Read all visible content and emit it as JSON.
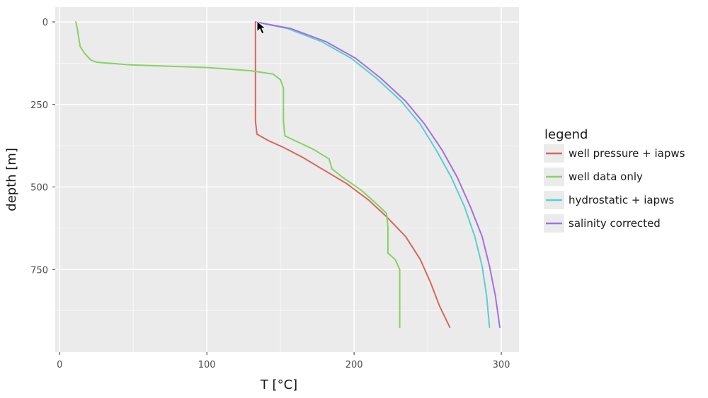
{
  "chart_data": {
    "type": "line",
    "title": "",
    "xlabel": "T [°C]",
    "ylabel": "depth [m]",
    "xlim": [
      -3,
      312
    ],
    "ylim": [
      1000,
      -45
    ],
    "y_reversed": true,
    "x_ticks": [
      0,
      100,
      200,
      300
    ],
    "y_ticks": [
      0,
      250,
      500,
      750
    ],
    "panel_background": "#ebebeb",
    "grid": true,
    "grid_color": "#ffffff",
    "legend": {
      "title": "legend",
      "position": "right"
    },
    "series": [
      {
        "name": "well pressure + iapws",
        "color": "#d9675b",
        "points": [
          [
            133,
            0
          ],
          [
            133,
            100
          ],
          [
            133,
            200
          ],
          [
            133,
            300
          ],
          [
            134,
            340
          ],
          [
            142,
            360
          ],
          [
            152,
            380
          ],
          [
            165,
            410
          ],
          [
            180,
            450
          ],
          [
            195,
            490
          ],
          [
            210,
            540
          ],
          [
            222,
            590
          ],
          [
            235,
            650
          ],
          [
            245,
            720
          ],
          [
            252,
            790
          ],
          [
            258,
            860
          ],
          [
            265,
            925
          ]
        ]
      },
      {
        "name": "well data only",
        "color": "#86d264",
        "points": [
          [
            11,
            0
          ],
          [
            12,
            20
          ],
          [
            13,
            50
          ],
          [
            14,
            75
          ],
          [
            17,
            95
          ],
          [
            21,
            115
          ],
          [
            25,
            122
          ],
          [
            48,
            130
          ],
          [
            100,
            138
          ],
          [
            130,
            148
          ],
          [
            145,
            158
          ],
          [
            150,
            175
          ],
          [
            152,
            200
          ],
          [
            152,
            250
          ],
          [
            152,
            300
          ],
          [
            153,
            345
          ],
          [
            160,
            360
          ],
          [
            172,
            385
          ],
          [
            183,
            415
          ],
          [
            185,
            445
          ],
          [
            192,
            470
          ],
          [
            205,
            510
          ],
          [
            215,
            550
          ],
          [
            222,
            580
          ],
          [
            223,
            620
          ],
          [
            223,
            700
          ],
          [
            228,
            720
          ],
          [
            231,
            750
          ],
          [
            231,
            850
          ],
          [
            231,
            925
          ]
        ]
      },
      {
        "name": "hydrostatic + iapws",
        "color": "#5bcfcf",
        "points": [
          [
            133,
            0
          ],
          [
            155,
            20
          ],
          [
            178,
            60
          ],
          [
            198,
            110
          ],
          [
            215,
            170
          ],
          [
            232,
            240
          ],
          [
            245,
            310
          ],
          [
            256,
            390
          ],
          [
            266,
            470
          ],
          [
            275,
            560
          ],
          [
            282,
            650
          ],
          [
            287,
            740
          ],
          [
            290,
            830
          ],
          [
            292,
            925
          ]
        ]
      },
      {
        "name": "salinity corrected",
        "color": "#a270e0",
        "points": [
          [
            133,
            0
          ],
          [
            157,
            20
          ],
          [
            181,
            60
          ],
          [
            201,
            110
          ],
          [
            218,
            170
          ],
          [
            235,
            240
          ],
          [
            248,
            310
          ],
          [
            260,
            390
          ],
          [
            270,
            470
          ],
          [
            279,
            560
          ],
          [
            287,
            650
          ],
          [
            292,
            740
          ],
          [
            296,
            830
          ],
          [
            299,
            925
          ]
        ]
      }
    ]
  }
}
